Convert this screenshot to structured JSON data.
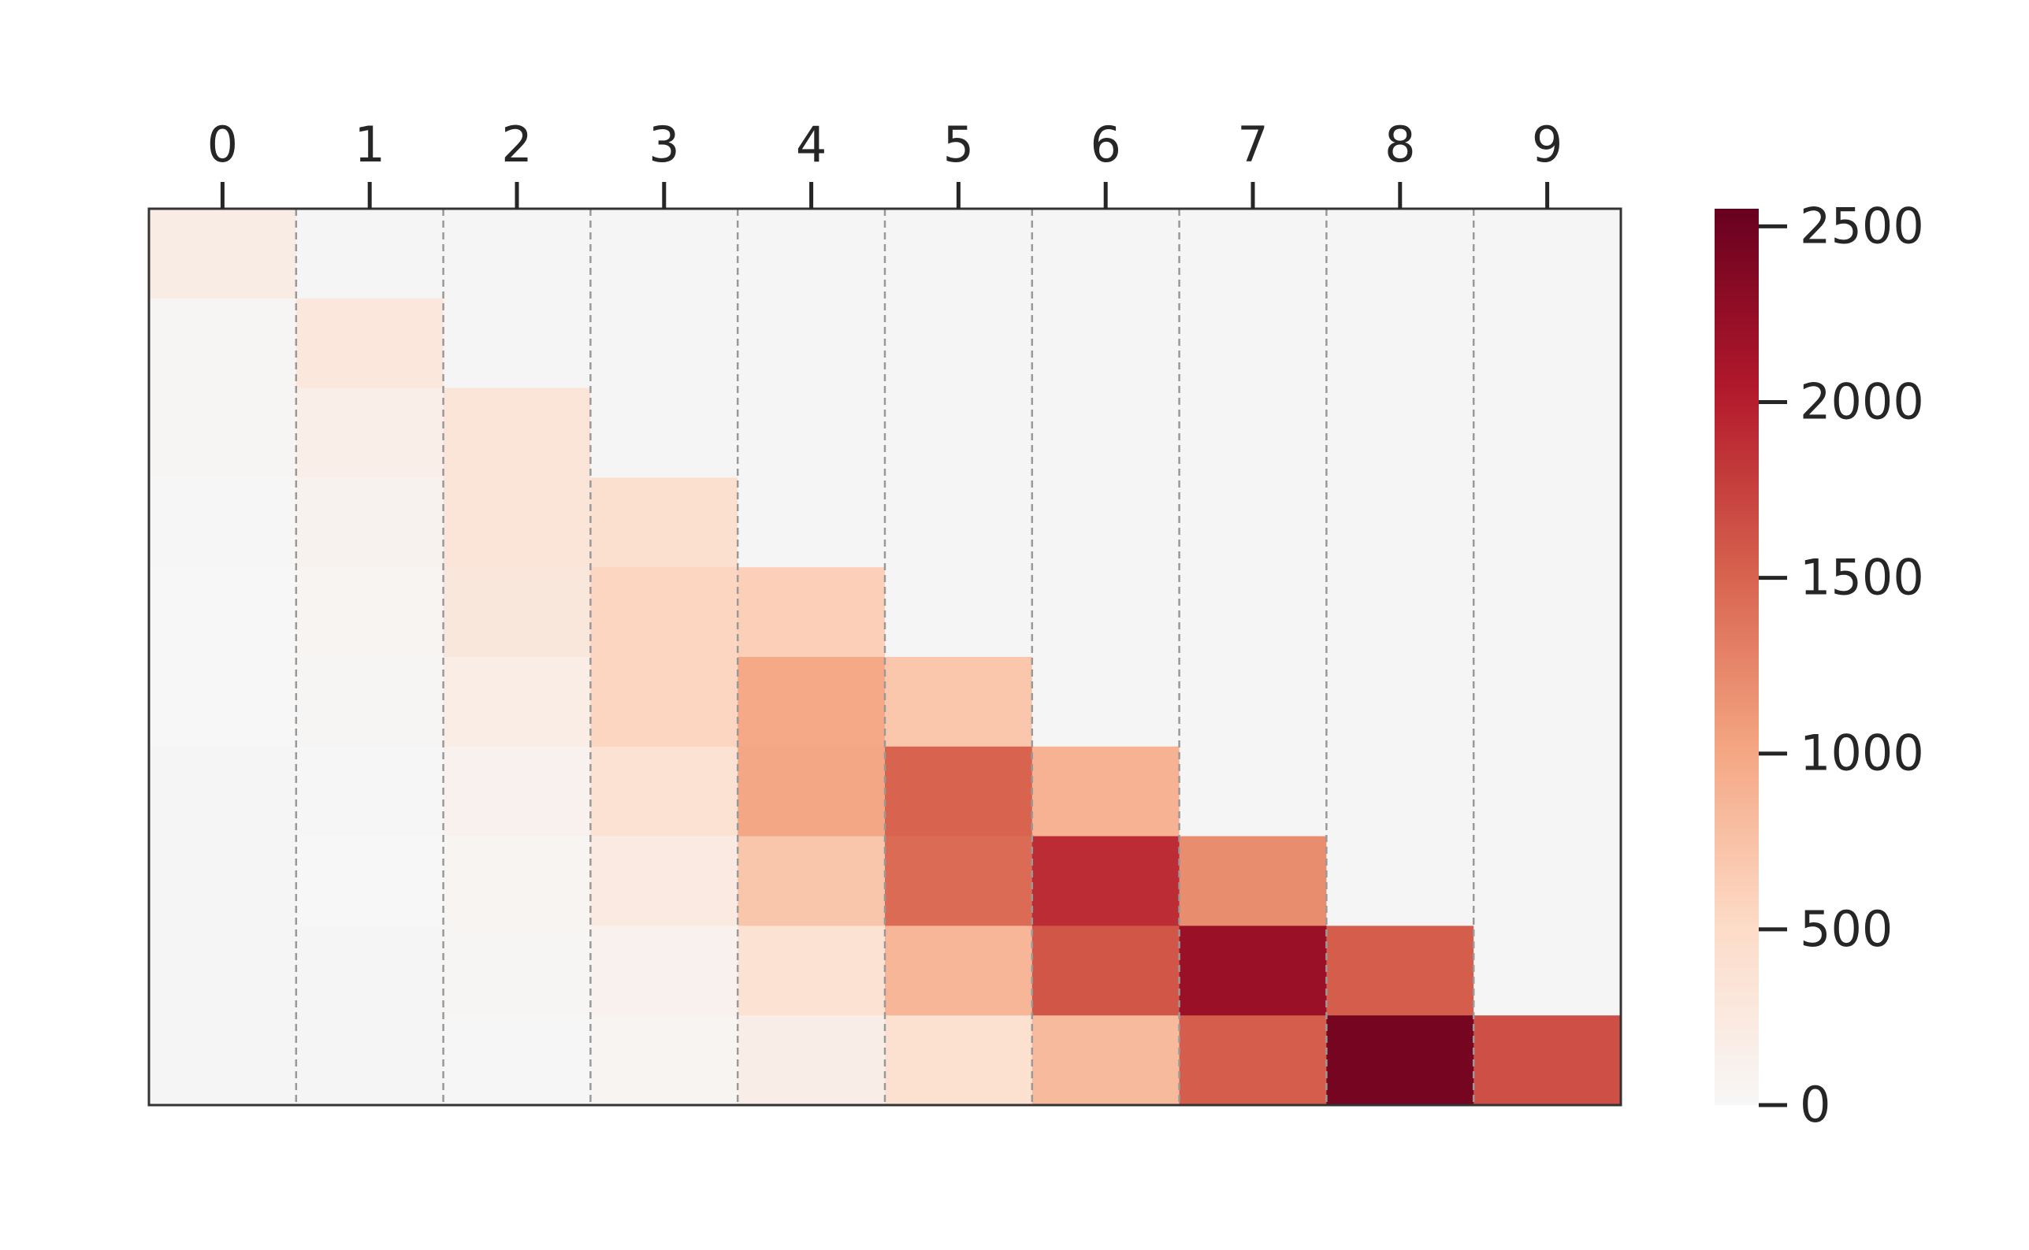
{
  "chart_data": {
    "type": "heatmap",
    "title": "",
    "xlabel": "",
    "ylabel": "",
    "x_categories": [
      "0",
      "1",
      "2",
      "3",
      "4",
      "5",
      "6",
      "7",
      "8",
      "9"
    ],
    "x_tick_position": "top",
    "y_ticks_shown": false,
    "rows": 10,
    "columns": 10,
    "values": [
      [
        200,
        0,
        0,
        0,
        0,
        0,
        0,
        0,
        0,
        0
      ],
      [
        40,
        300,
        0,
        0,
        0,
        0,
        0,
        0,
        0,
        0
      ],
      [
        40,
        160,
        320,
        0,
        0,
        0,
        0,
        0,
        0,
        0
      ],
      [
        10,
        90,
        330,
        420,
        0,
        0,
        0,
        0,
        0,
        0
      ],
      [
        5,
        60,
        290,
        560,
        620,
        0,
        0,
        0,
        0,
        0
      ],
      [
        5,
        30,
        180,
        560,
        980,
        700,
        0,
        0,
        0,
        0
      ],
      [
        0,
        10,
        110,
        390,
        1000,
        1500,
        900,
        0,
        0,
        0
      ],
      [
        0,
        5,
        60,
        230,
        720,
        1450,
        1900,
        1200,
        0,
        0
      ],
      [
        0,
        0,
        30,
        110,
        380,
        860,
        1600,
        2200,
        1550,
        0
      ],
      [
        0,
        0,
        10,
        50,
        170,
        400,
        820,
        1550,
        2450,
        1650
      ]
    ],
    "colorscale": "RdBu_r (upper half)",
    "colorbar": {
      "min": 0,
      "max": 2550,
      "ticks": [
        0,
        500,
        1000,
        1500,
        2000,
        2500
      ]
    },
    "empty_cell_color": "#f5f5f5",
    "vertical_gridlines": "dashed gray between columns",
    "frame_color": "#333333"
  }
}
